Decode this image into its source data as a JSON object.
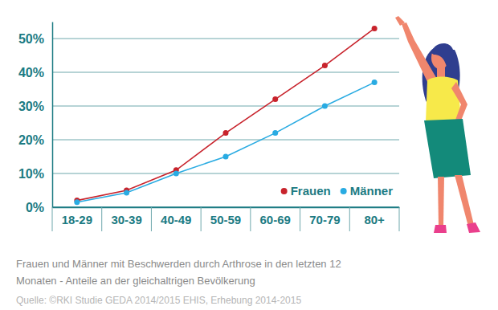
{
  "chart_data": {
    "type": "line",
    "title": "Frauen und Männer mit Beschwerden durch Arthrose in den letzten 12 Monaten - Anteile an der gleichaltrigen Bevölkerung",
    "source": "Quelle: ©RKI Studie GEDA 2014/2015 EHIS, Erhebung 2014-2015",
    "categories": [
      "18-29",
      "30-39",
      "40-49",
      "50-59",
      "60-69",
      "70-79",
      "80+"
    ],
    "series": [
      {
        "name": "Frauen",
        "color": "#c8232c",
        "values": [
          2,
          5,
          11,
          22,
          32,
          42,
          53
        ]
      },
      {
        "name": "Männer",
        "color": "#29abe2",
        "values": [
          1.5,
          4.3,
          10,
          15,
          22,
          30,
          37
        ]
      }
    ],
    "ylim": [
      0,
      55
    ],
    "yticks": [
      {
        "value": 0,
        "label": "0%"
      },
      {
        "value": 10,
        "label": "10%"
      },
      {
        "value": 20,
        "label": "20%"
      },
      {
        "value": 30,
        "label": "30%"
      },
      {
        "value": 40,
        "label": "40%"
      },
      {
        "value": 50,
        "label": "50%"
      }
    ],
    "grid": true,
    "legend": "bottom-right",
    "marker": "circle"
  }
}
